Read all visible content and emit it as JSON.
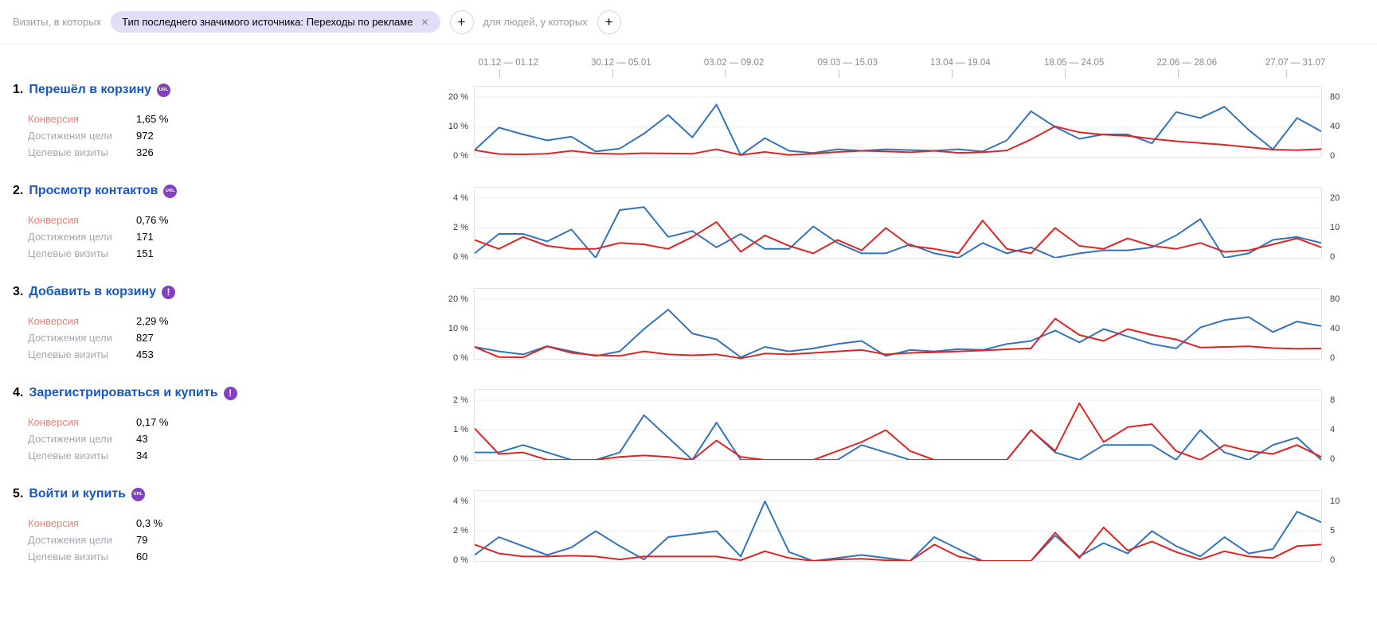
{
  "filter_bar": {
    "visits_label": "Визиты, в которых",
    "chip_text": "Тип последнего значимого источника: Переходы по рекламе",
    "people_label": "для людей, у которых"
  },
  "icons": {
    "close": "✕",
    "add": "+"
  },
  "colors": {
    "line_blue": "#3373b9",
    "line_red": "#e02424",
    "link_blue": "#1757c2",
    "badge_purple": "#8440bf",
    "chip_bg": "#e3def7",
    "conversion_label": "#e8837a",
    "grey_label": "#a3a9b1"
  },
  "x_axis": {
    "labels": [
      "01.12 — 01.12",
      "30.12 — 05.01",
      "03.02 — 09.02",
      "09.03 — 15.03",
      "13.04 — 19.04",
      "18.05 — 24.05",
      "22.06 — 28.06",
      "27.07 — 31.07"
    ],
    "positions": [
      0.03,
      0.163,
      0.296,
      0.43,
      0.563,
      0.697,
      0.83,
      0.958
    ]
  },
  "goals": [
    {
      "index": "1.",
      "title": "Перешёл в корзину",
      "badge_text": "URL",
      "stats": [
        {
          "label": "Конверсия",
          "value": "1,65 %"
        },
        {
          "label": "Достижения цели",
          "value": "972"
        },
        {
          "label": "Целевые визиты",
          "value": "326"
        }
      ]
    },
    {
      "index": "2.",
      "title": "Просмотр контактов",
      "badge_text": "URL",
      "stats": [
        {
          "label": "Конверсия",
          "value": "0,76 %"
        },
        {
          "label": "Достижения цели",
          "value": "171"
        },
        {
          "label": "Целевые визиты",
          "value": "151"
        }
      ]
    },
    {
      "index": "3.",
      "title": "Добавить в корзину",
      "badge_text": "!",
      "stats": [
        {
          "label": "Конверсия",
          "value": "2,29 %"
        },
        {
          "label": "Достижения цели",
          "value": "827"
        },
        {
          "label": "Целевые визиты",
          "value": "453"
        }
      ]
    },
    {
      "index": "4.",
      "title": "Зарегистрироваться и купить",
      "badge_text": "!",
      "stats": [
        {
          "label": "Конверсия",
          "value": "0,17 %"
        },
        {
          "label": "Достижения цели",
          "value": "43"
        },
        {
          "label": "Целевые визиты",
          "value": "34"
        }
      ]
    },
    {
      "index": "5.",
      "title": "Войти и купить",
      "badge_text": "URL",
      "stats": [
        {
          "label": "Конверсия",
          "value": "0,3 %"
        },
        {
          "label": "Достижения цели",
          "value": "79"
        },
        {
          "label": "Целевые визиты",
          "value": "60"
        }
      ]
    }
  ],
  "chart_data": [
    {
      "type": "line",
      "goal": "Перешёл в корзину",
      "x": "36 weekly points, 01.12 — 31.07",
      "left_axis": {
        "unit": "%",
        "ticks": [
          "20 %",
          "10 %",
          "0 %"
        ],
        "max": 20
      },
      "right_axis": {
        "ticks": [
          "80",
          "40",
          "0"
        ],
        "max": 80
      },
      "series": [
        {
          "name": "Конверсия",
          "color": "red",
          "axis": "left",
          "unit": "%",
          "values": [
            2.2,
            0.9,
            0.8,
            1.0,
            2.0,
            1.1,
            0.9,
            1.2,
            1.1,
            1.0,
            2.5,
            0.6,
            1.6,
            0.6,
            1.0,
            1.6,
            2.0,
            1.8,
            1.5,
            2.0,
            1.3,
            1.5,
            2.1,
            5.8,
            10.2,
            8.2,
            7.4,
            7.0,
            6.0,
            5.2,
            4.6,
            4.0,
            3.2,
            2.4,
            2.2,
            2.6
          ]
        },
        {
          "name": "Достижения цели",
          "color": "blue",
          "axis": "right",
          "values": [
            9,
            39,
            30,
            22,
            27,
            7,
            11,
            31,
            56,
            26,
            70,
            2,
            25,
            8,
            5,
            10,
            8,
            10,
            9,
            8,
            10,
            7,
            22,
            61,
            40,
            24,
            30,
            30,
            18,
            60,
            52,
            67,
            36,
            10,
            52,
            34
          ]
        }
      ]
    },
    {
      "type": "line",
      "goal": "Просмотр контактов",
      "x": "36 weekly points, 01.12 — 31.07",
      "left_axis": {
        "unit": "%",
        "ticks": [
          "4 %",
          "2 %",
          "0 %"
        ],
        "max": 4
      },
      "right_axis": {
        "ticks": [
          "20",
          "10",
          "0"
        ],
        "max": 20
      },
      "series": [
        {
          "name": "Конверсия",
          "color": "red",
          "axis": "left",
          "unit": "%",
          "values": [
            1.2,
            0.6,
            1.4,
            0.8,
            0.6,
            0.6,
            1.0,
            0.9,
            0.6,
            1.4,
            2.4,
            0.4,
            1.5,
            0.8,
            0.3,
            1.2,
            0.5,
            2.0,
            0.8,
            0.6,
            0.3,
            2.5,
            0.6,
            0.3,
            2.0,
            0.8,
            0.6,
            1.3,
            0.8,
            0.6,
            1.0,
            0.4,
            0.5,
            0.9,
            1.3,
            0.7
          ]
        },
        {
          "name": "Достижения цели",
          "color": "blue",
          "axis": "right",
          "values": [
            1.5,
            8,
            8,
            5.5,
            9.5,
            0,
            16,
            17,
            7,
            9,
            3.5,
            8,
            3,
            3,
            10.5,
            5,
            1.5,
            1.5,
            4.5,
            1.5,
            0,
            5,
            1.5,
            3.5,
            0,
            1.5,
            2.5,
            2.5,
            3.5,
            7.5,
            13,
            0,
            1.5,
            6,
            7,
            5
          ]
        }
      ]
    },
    {
      "type": "line",
      "goal": "Добавить в корзину",
      "x": "36 weekly points, 01.12 — 31.07",
      "left_axis": {
        "unit": "%",
        "ticks": [
          "20 %",
          "10 %",
          "0 %"
        ],
        "max": 20
      },
      "right_axis": {
        "ticks": [
          "80",
          "40",
          "0"
        ],
        "max": 80
      },
      "series": [
        {
          "name": "Конверсия",
          "color": "red",
          "axis": "left",
          "unit": "%",
          "values": [
            4.0,
            0.6,
            0.5,
            4.2,
            2.0,
            1.2,
            1.0,
            2.5,
            1.5,
            1.2,
            1.5,
            0.2,
            1.8,
            1.5,
            2.0,
            2.5,
            3.0,
            1.5,
            2.0,
            2.2,
            2.5,
            2.8,
            3.2,
            3.5,
            13.5,
            8.0,
            6.0,
            10.0,
            8.0,
            6.5,
            3.8,
            4.0,
            4.2,
            3.6,
            3.4,
            3.5
          ]
        },
        {
          "name": "Достижения цели",
          "color": "blue",
          "axis": "right",
          "values": [
            16,
            10,
            6,
            17,
            10,
            4,
            10,
            40,
            66,
            34,
            26,
            2,
            16,
            10,
            14,
            20,
            24,
            4,
            12,
            10,
            13,
            12,
            20,
            24,
            38,
            22,
            40,
            30,
            20,
            14,
            42,
            52,
            56,
            36,
            50,
            44
          ]
        }
      ]
    },
    {
      "type": "line",
      "goal": "Зарегистрироваться и купить",
      "x": "36 weekly points, 01.12 — 31.07",
      "left_axis": {
        "unit": "%",
        "ticks": [
          "2 %",
          "1 %",
          "0 %"
        ],
        "max": 2
      },
      "right_axis": {
        "ticks": [
          "8",
          "4",
          "0"
        ],
        "max": 8
      },
      "series": [
        {
          "name": "Конверсия",
          "color": "red",
          "axis": "left",
          "unit": "%",
          "values": [
            1.05,
            0.2,
            0.25,
            0.0,
            0.0,
            0.0,
            0.1,
            0.15,
            0.1,
            0.0,
            0.65,
            0.1,
            0.0,
            0.0,
            0.0,
            0.3,
            0.6,
            1.0,
            0.3,
            0.0,
            0.0,
            0.0,
            0.0,
            1.0,
            0.3,
            1.9,
            0.6,
            1.1,
            1.2,
            0.3,
            0.0,
            0.5,
            0.3,
            0.2,
            0.5,
            0.1
          ]
        },
        {
          "name": "Достижения цели",
          "color": "blue",
          "axis": "right",
          "values": [
            1,
            1,
            2,
            1,
            0,
            0,
            1,
            6,
            3,
            0,
            5,
            0,
            0,
            0,
            0,
            0,
            2,
            1,
            0,
            0,
            0,
            0,
            0,
            4,
            1,
            0,
            2,
            2,
            2,
            0,
            4,
            1,
            0,
            2,
            3,
            0
          ]
        }
      ]
    },
    {
      "type": "line",
      "goal": "Войти и купить",
      "x": "36 weekly points, 01.12 — 31.07",
      "left_axis": {
        "unit": "%",
        "ticks": [
          "4 %",
          "2 %",
          "0 %"
        ],
        "max": 4
      },
      "right_axis": {
        "ticks": [
          "10",
          "5",
          "0"
        ],
        "max": 10
      },
      "series": [
        {
          "name": "Конверсия",
          "color": "red",
          "axis": "left",
          "unit": "%",
          "values": [
            1.1,
            0.5,
            0.3,
            0.3,
            0.35,
            0.3,
            0.1,
            0.3,
            0.3,
            0.3,
            0.3,
            0.05,
            0.65,
            0.2,
            0.0,
            0.1,
            0.15,
            0.05,
            0.0,
            1.1,
            0.3,
            0.0,
            0.0,
            0.0,
            1.9,
            0.2,
            2.25,
            0.7,
            1.3,
            0.6,
            0.1,
            0.65,
            0.3,
            0.2,
            1.0,
            1.1
          ]
        },
        {
          "name": "Достижения цели",
          "color": "blue",
          "axis": "left",
          "unit": "%",
          "values": [
            0.4,
            1.6,
            1.0,
            0.4,
            0.9,
            2.0,
            1.0,
            0.1,
            1.6,
            1.8,
            2.0,
            0.3,
            4.0,
            0.6,
            0.0,
            0.2,
            0.4,
            0.2,
            0.0,
            1.6,
            0.8,
            0.0,
            0.0,
            0.0,
            1.7,
            0.3,
            1.2,
            0.5,
            2.0,
            1.0,
            0.3,
            1.6,
            0.5,
            0.8,
            3.3,
            2.6
          ]
        }
      ]
    }
  ]
}
